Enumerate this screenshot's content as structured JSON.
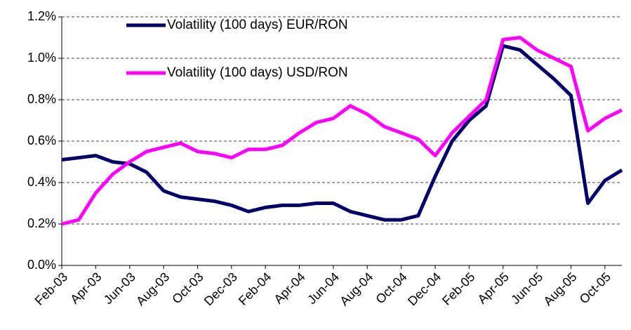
{
  "chart_data": {
    "type": "line",
    "categories": [
      "Feb-03",
      null,
      "Apr-03",
      null,
      "Jun-03",
      null,
      "Aug-03",
      null,
      "Oct-03",
      null,
      "Dec-03",
      null,
      "Feb-04",
      null,
      "Apr-04",
      null,
      "Jun-04",
      null,
      "Aug-04",
      null,
      "Oct-04",
      null,
      "Dec-04",
      null,
      "Feb-05",
      null,
      "Apr-05",
      null,
      "Jun-05",
      null,
      "Aug-05",
      null,
      "Oct-05",
      null
    ],
    "series": [
      {
        "name": "Volatility (100 days) EUR/RON",
        "color": "#000066",
        "values": [
          0.51,
          0.52,
          0.53,
          0.5,
          0.49,
          0.45,
          0.36,
          0.33,
          0.32,
          0.31,
          0.29,
          0.26,
          0.28,
          0.29,
          0.29,
          0.3,
          0.3,
          0.26,
          0.24,
          0.22,
          0.22,
          0.24,
          0.43,
          0.6,
          0.7,
          0.77,
          1.06,
          1.04,
          0.97,
          0.9,
          0.82,
          0.3,
          0.41,
          0.46
        ]
      },
      {
        "name": "Volatility (100 days) USD/RON",
        "color": "#ff00ff",
        "values": [
          0.2,
          0.22,
          0.35,
          0.44,
          0.5,
          0.55,
          0.57,
          0.59,
          0.55,
          0.54,
          0.52,
          0.56,
          0.56,
          0.58,
          0.64,
          0.69,
          0.71,
          0.77,
          0.73,
          0.67,
          0.64,
          0.61,
          0.53,
          0.64,
          0.72,
          0.8,
          1.09,
          1.1,
          1.04,
          1.0,
          0.96,
          0.65,
          0.71,
          0.75
        ]
      }
    ],
    "ylim": [
      0,
      1.2
    ],
    "yticks": [
      {
        "value": 0,
        "label": "0.0%"
      },
      {
        "value": 0.2,
        "label": "0.2%"
      },
      {
        "value": 0.4,
        "label": "0.4%"
      },
      {
        "value": 0.6,
        "label": "0.6%"
      },
      {
        "value": 0.8,
        "label": "0.8%"
      },
      {
        "value": 1.0,
        "label": "1.0%"
      },
      {
        "value": 1.2,
        "label": "1.2%"
      }
    ],
    "grid": true
  }
}
